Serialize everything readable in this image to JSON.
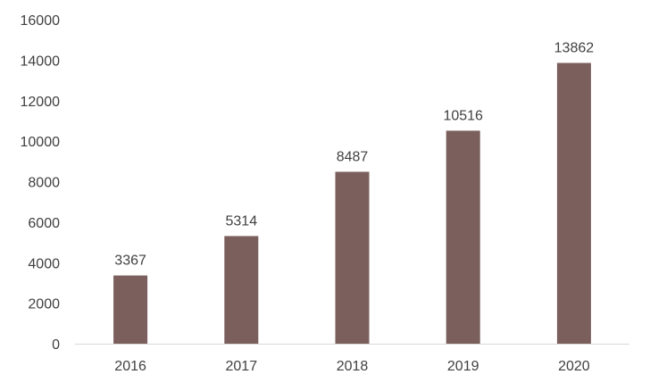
{
  "chart_data": {
    "type": "bar",
    "title": "",
    "xlabel": "",
    "ylabel": "",
    "categories": [
      "2016",
      "2017",
      "2018",
      "2019",
      "2020"
    ],
    "values": [
      3367,
      5314,
      8487,
      10516,
      13862
    ],
    "ylim": [
      0,
      16000
    ],
    "yticks": [
      0,
      2000,
      4000,
      6000,
      8000,
      10000,
      12000,
      14000,
      16000
    ],
    "grid": false,
    "legend": "none",
    "bar_color": "#7a5f5c",
    "axis_color": "#d9d9d9",
    "text_color": "#404040"
  }
}
